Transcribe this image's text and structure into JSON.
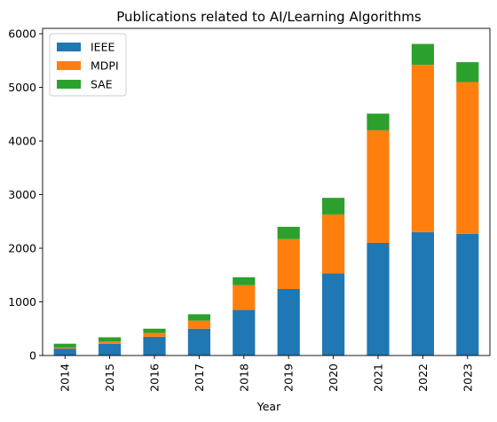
{
  "chart_data": {
    "type": "bar",
    "stacked": true,
    "title": "Publications related to AI/Learning Algorithms",
    "xlabel": "Year",
    "ylabel": "",
    "categories": [
      "2014",
      "2015",
      "2016",
      "2017",
      "2018",
      "2019",
      "2020",
      "2021",
      "2022",
      "2023"
    ],
    "series": [
      {
        "name": "IEEE",
        "color": "#1f77b4",
        "values": [
          130,
          220,
          350,
          500,
          850,
          1240,
          1530,
          2100,
          2300,
          2270
        ]
      },
      {
        "name": "MDPI",
        "color": "#ff7f0e",
        "values": [
          20,
          40,
          70,
          150,
          460,
          930,
          1100,
          2100,
          3120,
          2830
        ]
      },
      {
        "name": "SAE",
        "color": "#2ca02c",
        "values": [
          70,
          80,
          80,
          120,
          150,
          230,
          310,
          310,
          390,
          370
        ]
      }
    ],
    "ylim": [
      0,
      6100
    ],
    "yticks": [
      0,
      1000,
      2000,
      3000,
      4000,
      5000,
      6000
    ],
    "legend_position": "top-left",
    "grid": false
  }
}
